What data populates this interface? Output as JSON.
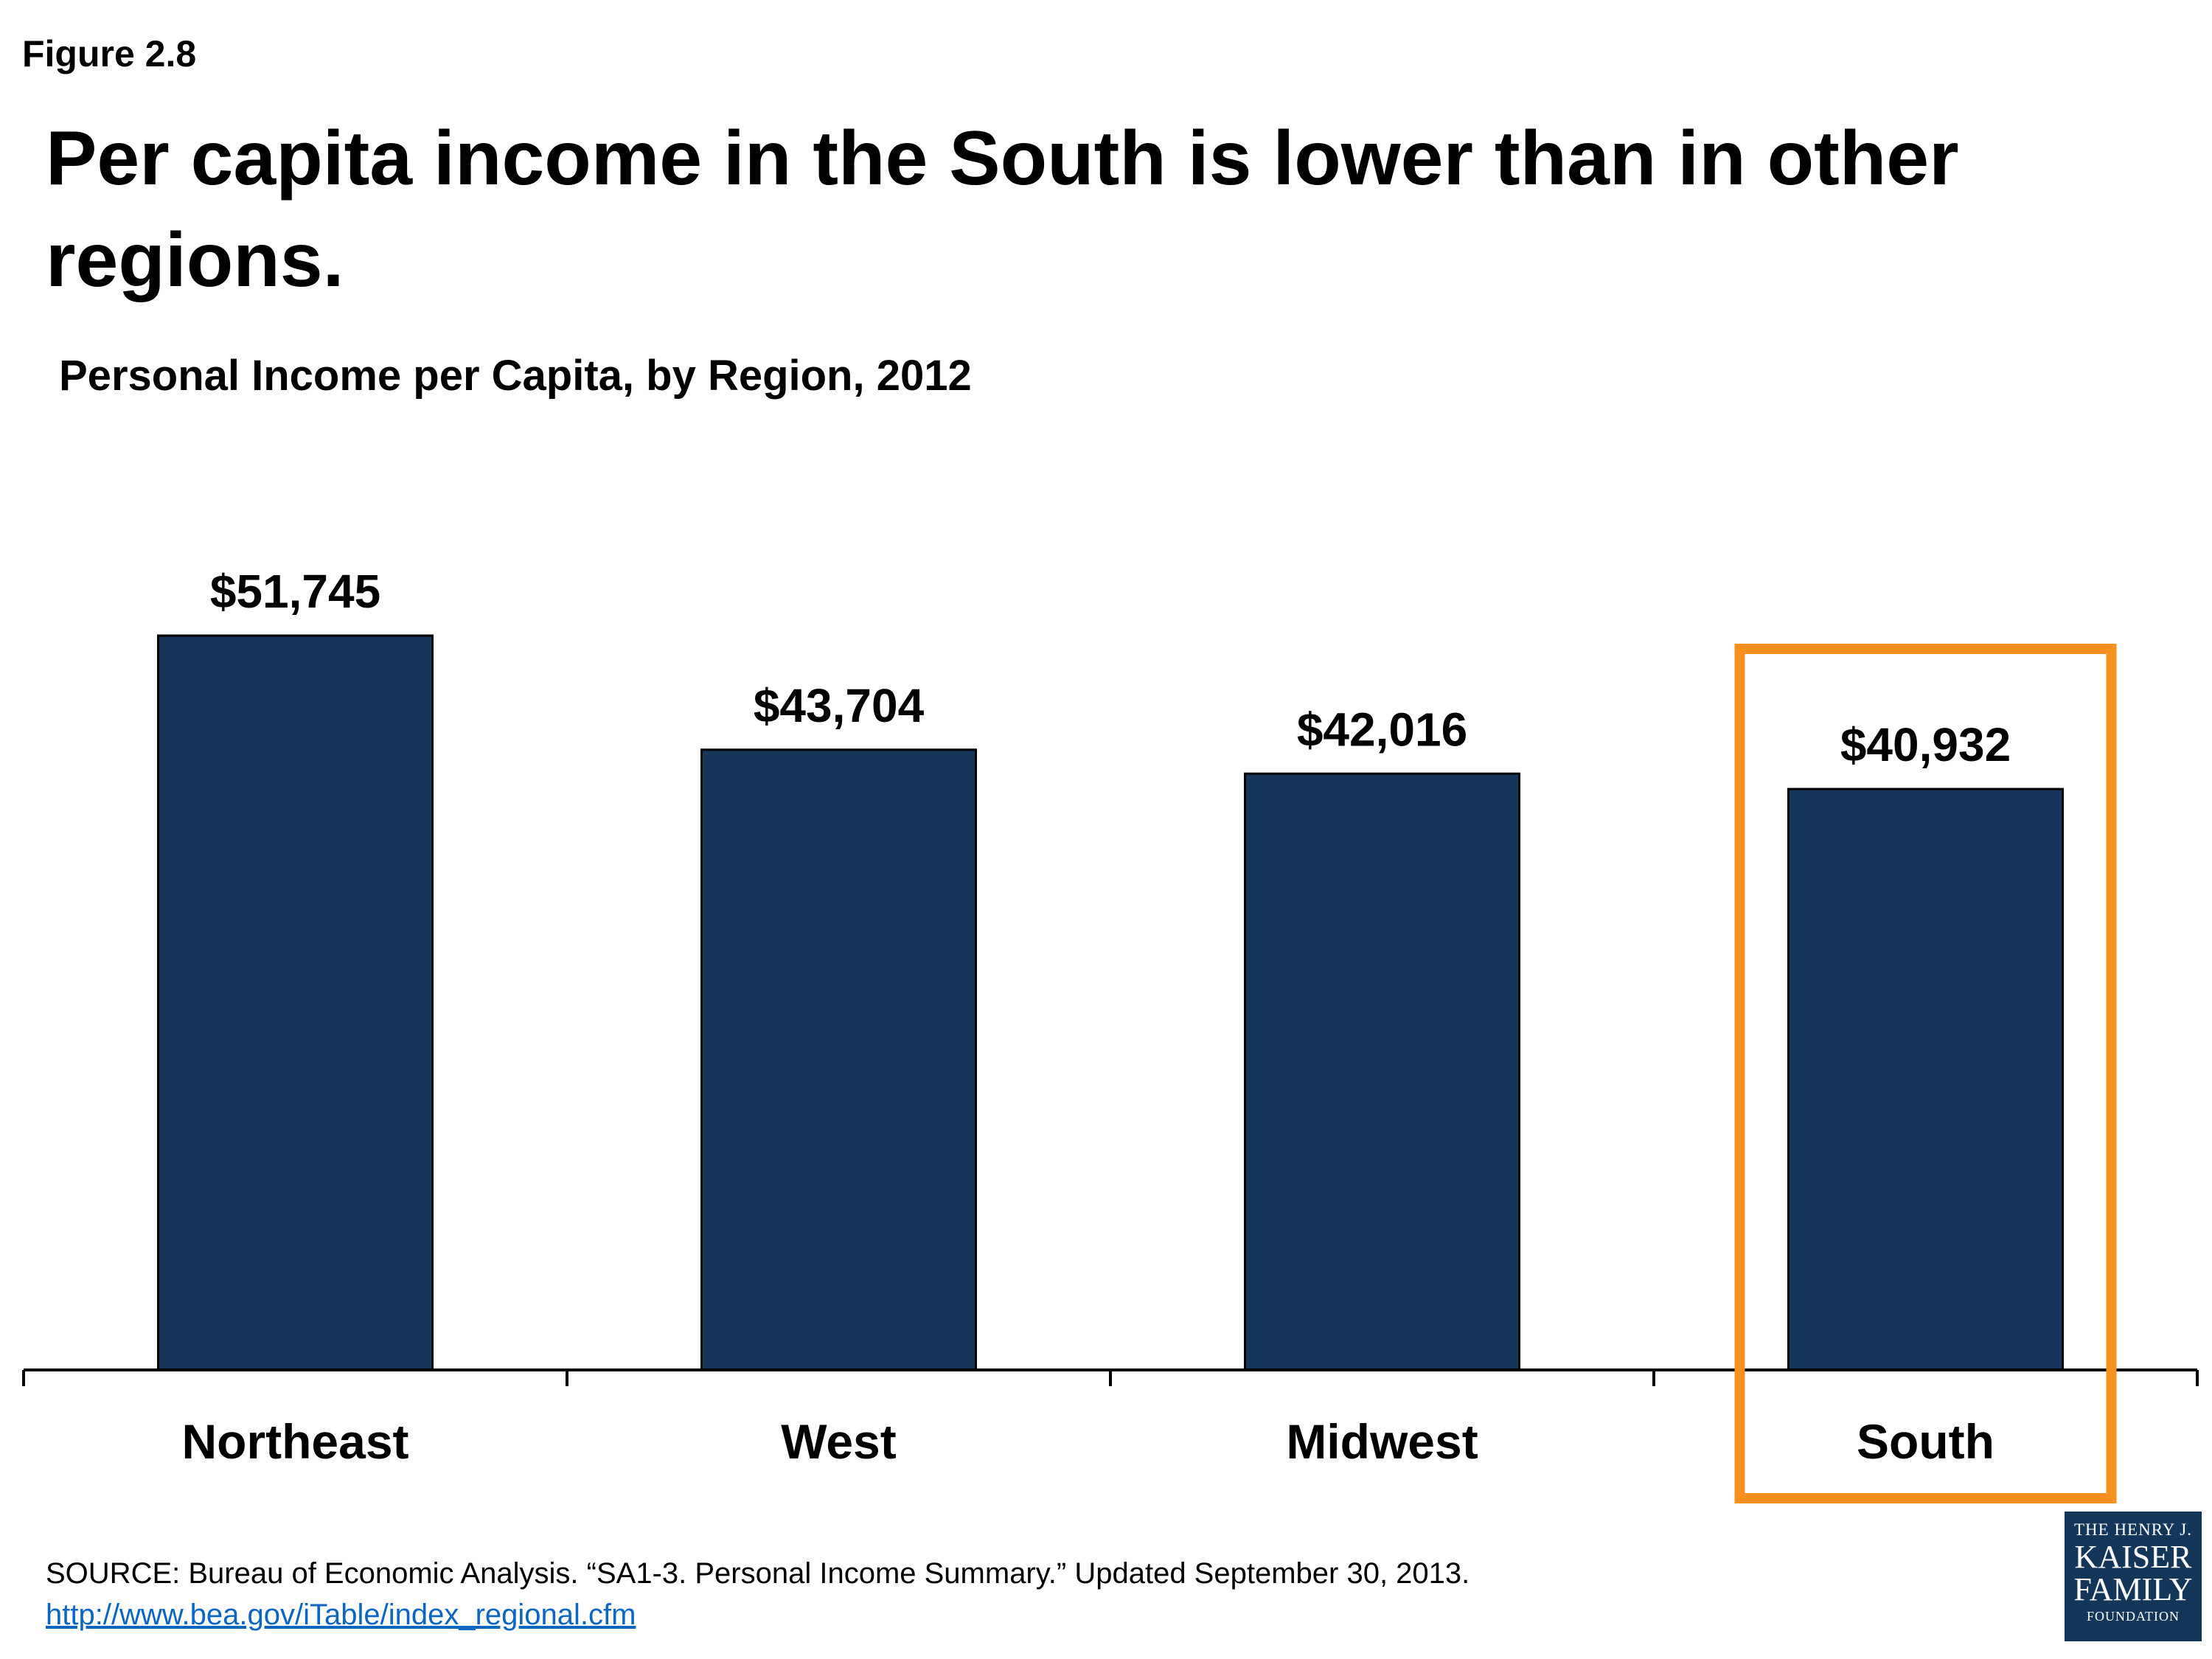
{
  "figure_label": "Figure 2.8",
  "headline": "Per capita income in the South is lower than in other regions.",
  "source": {
    "text": "SOURCE: Bureau of Economic Analysis. “SA1-3. Personal Income Summary.” Updated September 30, 2013.",
    "link": "http://www.bea.gov/iTable/index_regional.cfm"
  },
  "logo": {
    "line1": "THE HENRY J.",
    "line2": "KAISER",
    "line3": "FAMILY",
    "line4": "FOUNDATION"
  },
  "colors": {
    "bar": "#15355a",
    "highlight": "#f7901e"
  },
  "chart_data": {
    "type": "bar",
    "title": "Personal Income per Capita, by Region, 2012",
    "categories": [
      "Northeast",
      "West",
      "Midwest",
      "South"
    ],
    "values": [
      51745,
      43704,
      42016,
      40932
    ],
    "value_labels": [
      "$51,745",
      "$43,704",
      "$42,016",
      "$40,932"
    ],
    "ylim": [
      0,
      51745
    ],
    "grid": false,
    "legend": "none",
    "highlight_category": "South"
  }
}
